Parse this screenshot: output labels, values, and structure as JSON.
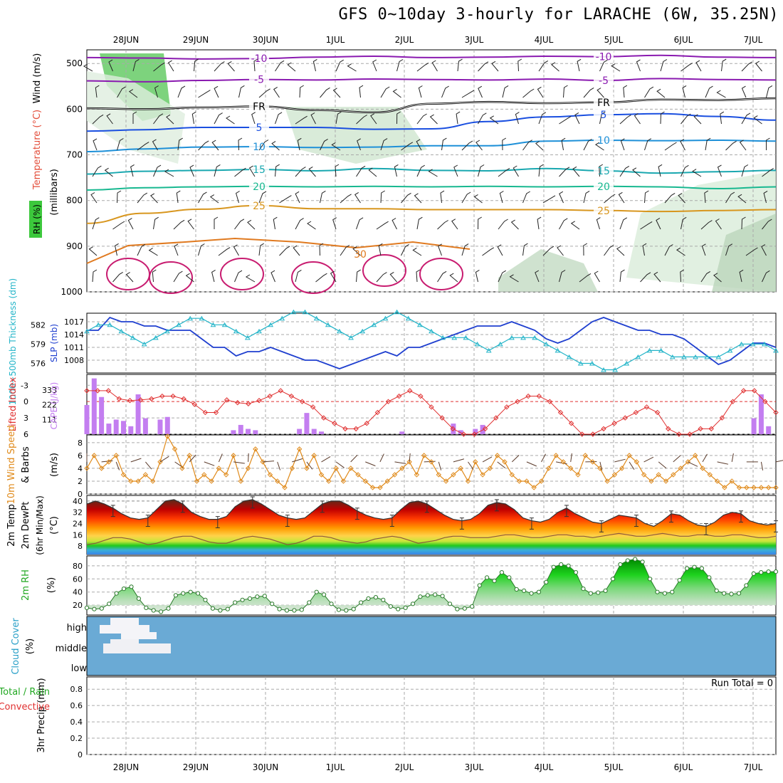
{
  "title": "GFS 0~10day 3-hourly for LARACHE (6W, 35.25N)",
  "date_labels": [
    "28JUN",
    "29JUN",
    "30JUN",
    "1JUL",
    "2JUL",
    "3JUL",
    "4JUL",
    "5JUL",
    "6JUL",
    "7JUL"
  ],
  "run_total_label": "Run Total = 0",
  "colors": {
    "grid": "#aaaaaa",
    "slp": "#1f3fcf",
    "thickness": "#22b4c8",
    "cape": "#c37ef0",
    "lifted": "#e03030",
    "wind": "#e08a1a",
    "rh": "#22a822",
    "cloud": "#6aaad5",
    "dew": "#8c5a3c"
  },
  "chart_data": [
    {
      "id": "upper",
      "type": "contour",
      "ylabel": [
        "Wind (m/s)",
        "Temperature (°C)",
        "RH (%)",
        "(millibars)"
      ],
      "y_ticks": [
        500,
        600,
        700,
        800,
        900,
        1000
      ],
      "temp_contour_labels": [
        "-10",
        "-5",
        "FR",
        "5",
        "10",
        "15",
        "20",
        "25",
        "30"
      ],
      "contours": [
        {
          "label": "-10",
          "color": "#8a1ab0",
          "levels": [
            487,
            488,
            490,
            489,
            486,
            484,
            487,
            486,
            484,
            485,
            482,
            486,
            487
          ]
        },
        {
          "label": "-5",
          "color": "#8a1ab0",
          "levels": [
            538,
            540,
            537,
            535,
            536,
            534,
            535,
            536,
            534,
            537,
            533,
            535,
            536
          ]
        },
        {
          "label": "FR",
          "color": "#000000",
          "levels": [
            598,
            600,
            596,
            594,
            602,
            607,
            588,
            584,
            587,
            585,
            579,
            580,
            576
          ]
        },
        {
          "label": "5",
          "color": "#1a4fe0",
          "levels": [
            648,
            645,
            640,
            640,
            640,
            644,
            643,
            627,
            617,
            612,
            610,
            616,
            624
          ]
        },
        {
          "label": "10",
          "color": "#1e90d8",
          "levels": [
            693,
            687,
            683,
            682,
            684,
            683,
            680,
            680,
            670,
            668,
            669,
            668,
            670
          ]
        },
        {
          "label": "15",
          "color": "#1aa8b0",
          "levels": [
            742,
            736,
            734,
            732,
            735,
            730,
            734,
            735,
            730,
            735,
            740,
            737,
            734
          ]
        },
        {
          "label": "20",
          "color": "#18b890",
          "levels": [
            777,
            772,
            770,
            769,
            770,
            769,
            770,
            769,
            770,
            769,
            770,
            774,
            770
          ]
        },
        {
          "label": "25",
          "color": "#d8961e",
          "levels": [
            850,
            828,
            819,
            811,
            818,
            818,
            820,
            820,
            820,
            822,
            824,
            822,
            820
          ]
        }
      ]
    },
    {
      "id": "slp",
      "type": "line",
      "ylabel": [
        "1000~500mb Thickness (dm)",
        "SLP (mb)"
      ],
      "thickness_ticks": [
        576,
        579,
        582
      ],
      "slp_ticks": [
        1008,
        1011,
        1014,
        1017
      ],
      "series": [
        {
          "name": "SLP (mb)",
          "values": [
            1015,
            1015,
            1018,
            1017,
            1017,
            1016,
            1016,
            1015,
            1015,
            1015,
            1013,
            1011,
            1011,
            1009,
            1010,
            1010,
            1011,
            1010,
            1009,
            1008,
            1008,
            1007,
            1006,
            1007,
            1008,
            1009,
            1010,
            1009,
            1011,
            1011,
            1012,
            1013,
            1014,
            1015,
            1016,
            1016,
            1016,
            1017,
            1016,
            1015,
            1013,
            1012,
            1013,
            1015,
            1017,
            1018,
            1017,
            1016,
            1015,
            1015,
            1014,
            1014,
            1013,
            1011,
            1009,
            1007,
            1008,
            1010,
            1012,
            1012,
            1011
          ]
        },
        {
          "name": "1000~500mb Thickness (dm)",
          "values": [
            581,
            582,
            582,
            581,
            580,
            579,
            580,
            581,
            582,
            583,
            583,
            582,
            582,
            581,
            580,
            581,
            582,
            583,
            584,
            584,
            583,
            582,
            581,
            580,
            581,
            582,
            583,
            584,
            583,
            582,
            581,
            580,
            580,
            580,
            579,
            578,
            579,
            580,
            580,
            580,
            579,
            578,
            577,
            576,
            576,
            575,
            575,
            576,
            577,
            578,
            578,
            577,
            577,
            577,
            577,
            577,
            578,
            579,
            579,
            579,
            578
          ]
        }
      ]
    },
    {
      "id": "cape",
      "type": "bar",
      "ylabel": [
        "Lifted Index",
        "CAPE (J/kg)"
      ],
      "li_ticks": [
        "-3",
        "0",
        "3",
        "6"
      ],
      "cape_ticks": [
        "111",
        "222",
        "333"
      ],
      "series": [
        {
          "name": "CAPE (J/kg)",
          "values": [
            220,
            420,
            280,
            80,
            110,
            100,
            60,
            300,
            120,
            0,
            110,
            130,
            0,
            0,
            0,
            0,
            0,
            0,
            0,
            0,
            30,
            70,
            40,
            30,
            0,
            0,
            0,
            0,
            0,
            40,
            160,
            40,
            20,
            0,
            0,
            0,
            0,
            0,
            0,
            0,
            0,
            0,
            0,
            20,
            0,
            0,
            0,
            0,
            0,
            0,
            80,
            30,
            0,
            40,
            70,
            0,
            0,
            0,
            0,
            0,
            0,
            0,
            0,
            0,
            0,
            0,
            0,
            0,
            0,
            0,
            0,
            0,
            0,
            0,
            0,
            0,
            0,
            0,
            0,
            0,
            0,
            0,
            0,
            0,
            0,
            0,
            0,
            0,
            0,
            0,
            0,
            120,
            300,
            60,
            0
          ]
        },
        {
          "name": "Lifted Index",
          "values": [
            -2,
            -2,
            -2,
            -0.5,
            -0.2,
            -0.3,
            -0.5,
            -1,
            -1,
            -0.5,
            0.5,
            2,
            2,
            -0.3,
            0.2,
            0.4,
            -0.2,
            -1,
            -2,
            -1,
            0,
            1,
            3,
            4,
            5,
            5,
            4,
            2,
            0,
            -1,
            -2,
            -1,
            1,
            3,
            5,
            6,
            6,
            5,
            3,
            1,
            0,
            -1,
            -1,
            0,
            2,
            4,
            6,
            6,
            5,
            4,
            3,
            2,
            1,
            2,
            5,
            6,
            6,
            5,
            5,
            3,
            0,
            -2,
            -2,
            0,
            2
          ]
        }
      ]
    },
    {
      "id": "wind10",
      "type": "line",
      "ylabel": [
        "10m Wind Speed",
        "& Barbs",
        "(m/s)"
      ],
      "y_ticks": [
        0,
        2,
        4,
        6,
        8
      ],
      "series": [
        {
          "name": "10m Wind Speed",
          "values": [
            4,
            6,
            4,
            5,
            6,
            3,
            2,
            2,
            3,
            2,
            5,
            9,
            7,
            4,
            6,
            2,
            3,
            2,
            4,
            3,
            6,
            2,
            4,
            7,
            5,
            3,
            2,
            1,
            4,
            7,
            4,
            6,
            3,
            2,
            4,
            2,
            4,
            3,
            2,
            1,
            1,
            2,
            3,
            4,
            5,
            3,
            6,
            5,
            3,
            2,
            3,
            4,
            2,
            5,
            3,
            4,
            6,
            5,
            3,
            2,
            2,
            1,
            2,
            4,
            6,
            5,
            4,
            3,
            6,
            5,
            4,
            2,
            3,
            4,
            6,
            5,
            3,
            2,
            3,
            2,
            3,
            4,
            5,
            6,
            4,
            3,
            2,
            1,
            2,
            1,
            1,
            1,
            1,
            1,
            1
          ]
        }
      ]
    },
    {
      "id": "temp",
      "type": "area",
      "ylabel": [
        "2m Temp",
        "2m DewPt",
        "(6hr Min/Max)",
        "(°C)"
      ],
      "y_ticks": [
        8,
        16,
        24,
        32,
        40
      ],
      "series": [
        {
          "name": "2m Temp",
          "values": [
            38,
            40,
            38,
            35,
            31,
            28,
            27,
            28,
            34,
            40,
            41,
            38,
            32,
            29,
            27,
            27,
            29,
            36,
            40,
            41,
            38,
            34,
            30,
            28,
            27,
            28,
            33,
            38,
            40,
            40,
            37,
            33,
            30,
            28,
            27,
            28,
            34,
            39,
            40,
            38,
            34,
            30,
            27,
            26,
            27,
            31,
            37,
            39,
            38,
            34,
            28,
            26,
            25,
            27,
            32,
            35,
            31,
            28,
            25,
            24,
            27,
            30,
            29,
            28,
            24,
            22,
            26,
            31,
            30,
            26,
            23,
            22,
            25,
            30,
            32,
            31,
            26,
            24,
            23,
            24
          ]
        },
        {
          "name": "2m DewPt",
          "values": [
            9,
            10,
            12,
            14,
            14,
            13,
            11,
            9,
            10,
            12,
            14,
            15,
            15,
            13,
            11,
            10,
            10,
            12,
            14,
            15,
            14,
            13,
            11,
            9,
            10,
            12,
            15,
            15,
            14,
            12,
            11,
            10,
            11,
            13,
            14,
            15,
            14,
            12,
            10,
            11,
            12,
            14,
            15,
            15,
            14,
            14,
            14,
            15,
            16,
            16,
            15,
            14,
            14,
            15,
            16,
            16,
            15,
            15,
            14,
            15,
            16,
            17,
            16,
            15,
            15,
            16,
            17,
            16,
            15,
            15,
            16,
            16,
            15,
            15,
            16,
            16,
            15,
            14,
            14,
            15
          ]
        }
      ]
    },
    {
      "id": "rh",
      "type": "area",
      "ylabel": [
        "2m RH",
        "(%)"
      ],
      "y_ticks": [
        20,
        40,
        60,
        80
      ],
      "series": [
        {
          "name": "2m RH",
          "values": [
            16,
            14,
            15,
            22,
            38,
            45,
            48,
            30,
            16,
            12,
            10,
            15,
            35,
            38,
            40,
            38,
            28,
            15,
            12,
            14,
            24,
            28,
            30,
            33,
            34,
            22,
            14,
            12,
            12,
            13,
            24,
            40,
            36,
            22,
            13,
            12,
            14,
            24,
            30,
            32,
            28,
            18,
            14,
            16,
            22,
            33,
            35,
            36,
            34,
            22,
            14,
            15,
            18,
            50,
            62,
            57,
            70,
            62,
            44,
            42,
            38,
            40,
            55,
            78,
            82,
            80,
            70,
            45,
            38,
            39,
            42,
            60,
            82,
            88,
            90,
            86,
            60,
            40,
            38,
            40,
            58,
            76,
            78,
            76,
            62,
            42,
            38,
            37,
            38,
            50,
            68,
            70,
            71,
            71
          ]
        }
      ]
    },
    {
      "id": "cloud",
      "type": "heatmap",
      "ylabel": [
        "Cloud Cover",
        "(%)"
      ],
      "rows": [
        "high",
        "middle",
        "low"
      ]
    },
    {
      "id": "precip",
      "type": "bar",
      "ylabel": [
        "3hr Precip (mm)",
        "Total / Rain",
        "Convective"
      ],
      "y_ticks": [
        "0",
        "0.2",
        "0.4",
        "0.6",
        "0.8"
      ],
      "series": [
        {
          "name": "3hr Precip (mm)",
          "values": []
        }
      ]
    }
  ]
}
